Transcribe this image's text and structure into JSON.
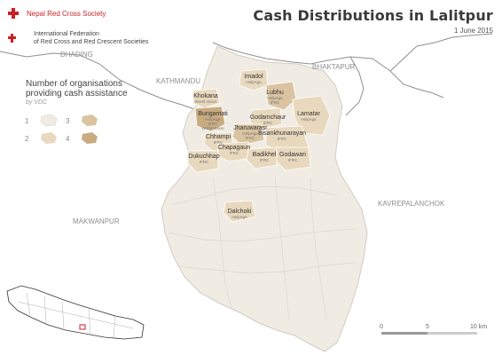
{
  "header": {
    "title": "Cash Distributions in Lalitpur",
    "date": "1 June 2015"
  },
  "logos": {
    "nrcs": "Nepal Red Cross Society",
    "ifrc_line1": "International Federation",
    "ifrc_line2": "of Red Cross and Red Crescent Societies"
  },
  "legend": {
    "title_line1": "Number of organisations",
    "title_line2": "providing cash assistance",
    "subtitle": "by VDC",
    "items": [
      {
        "label": "1",
        "color": "#f1ece3"
      },
      {
        "label": "2",
        "color": "#e8d8bd"
      },
      {
        "label": "3",
        "color": "#d9c3a0"
      },
      {
        "label": "4",
        "color": "#c9ab80"
      }
    ]
  },
  "districts": {
    "dhading": "DHADING",
    "kathmandu": "KATHMANDU",
    "bhaktapur": "BHAKTAPUR",
    "makwanpur": "MAKWANPUR",
    "kavrepalanchok": "KAVREPALANCHOK"
  },
  "vdcs": [
    {
      "name": "Imadol",
      "orgs": "HelpAge"
    },
    {
      "name": "Khokana",
      "orgs": "World Vision"
    },
    {
      "name": "Lubhu",
      "orgs": "HelpAge\nIFRC"
    },
    {
      "name": "Bungamati",
      "orgs": "HelpAge\nIFRC\nWorld Vision"
    },
    {
      "name": "Godamchaur",
      "orgs": "IFRC"
    },
    {
      "name": "Lamatar",
      "orgs": "HelpAge"
    },
    {
      "name": "Jharuwarasi",
      "orgs": "HelpAge\nIFRC"
    },
    {
      "name": "Bisankhunarayan",
      "orgs": "IFRC"
    },
    {
      "name": "Chhampi",
      "orgs": "IFRC"
    },
    {
      "name": "Chapagaun",
      "orgs": "IFRC"
    },
    {
      "name": "Dukuchhap",
      "orgs": "IFRC"
    },
    {
      "name": "Badikhel",
      "orgs": "IFRC"
    },
    {
      "name": "Godawari",
      "orgs": "IFRC"
    },
    {
      "name": "Dalchoki",
      "orgs": "HelpAge"
    }
  ],
  "scale": {
    "labels": [
      "0",
      "5",
      "10 km"
    ]
  },
  "colors": {
    "map_fill": "#f1ece3",
    "boundary": "#c8c3bc",
    "district_line": "#8f8f8f",
    "red": "#cc1f24"
  },
  "icons": [
    "red-cross-icon",
    "ifrc-emblem-icon"
  ]
}
